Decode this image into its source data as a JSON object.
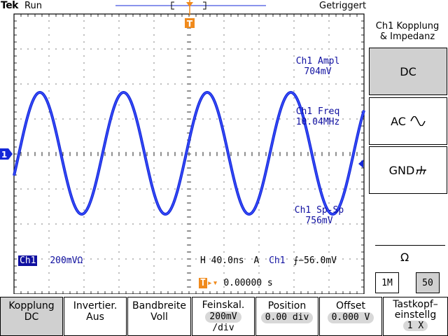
{
  "header": {
    "brand": "Tek",
    "run_state": "Run",
    "trigger_state": "Getriggert"
  },
  "measurements": {
    "ampl_label": "Ch1 Ampl",
    "ampl_value": "704mV",
    "freq_label": "Ch1 Freq",
    "freq_value": "10.04MHz",
    "pkpk_label": "Ch1 Sp-Sp",
    "pkpk_value": "756mV"
  },
  "status_line": {
    "channel": "Ch1",
    "scale": "200mV",
    "coupling_symbol": "Ω",
    "horizontal": "H 40.0ns",
    "trigger_mode": "A",
    "trigger_source": "Ch1",
    "trigger_level": "−56.0mV",
    "trigger_position": "0.00000 s"
  },
  "markers": {
    "channel_marker": "1",
    "trigger_marker": "T"
  },
  "side_menu": {
    "title_line1": "Ch1 Kopplung",
    "title_line2": "& Impedanz",
    "dc": "DC",
    "ac": "AC",
    "gnd": "GND",
    "impedance_label": "Ω",
    "imp_1m": "1M",
    "imp_50": "50"
  },
  "bottom_menu": [
    {
      "line1": "Kopplung",
      "line2": "DC"
    },
    {
      "line1": "Invertier.",
      "line2": "Aus"
    },
    {
      "line1": "Bandbreite",
      "line2": "Voll"
    },
    {
      "line1": "Feinskal.",
      "line2": "200mV",
      "line3": "/div"
    },
    {
      "line1": "Position",
      "line2": "0.00 div"
    },
    {
      "line1": "Offset",
      "line2": "0.000 V"
    },
    {
      "line1": "Tastkopf–",
      "line2": "einstellg",
      "line3": "1 X"
    }
  ],
  "colors": {
    "trace": "#1428d8",
    "trigger": "#f08a1c",
    "text_blue": "#1010a0"
  },
  "waveform": {
    "cycles_visible": 4.2,
    "freq_mhz": 10.04,
    "ampl_mv": 704
  }
}
